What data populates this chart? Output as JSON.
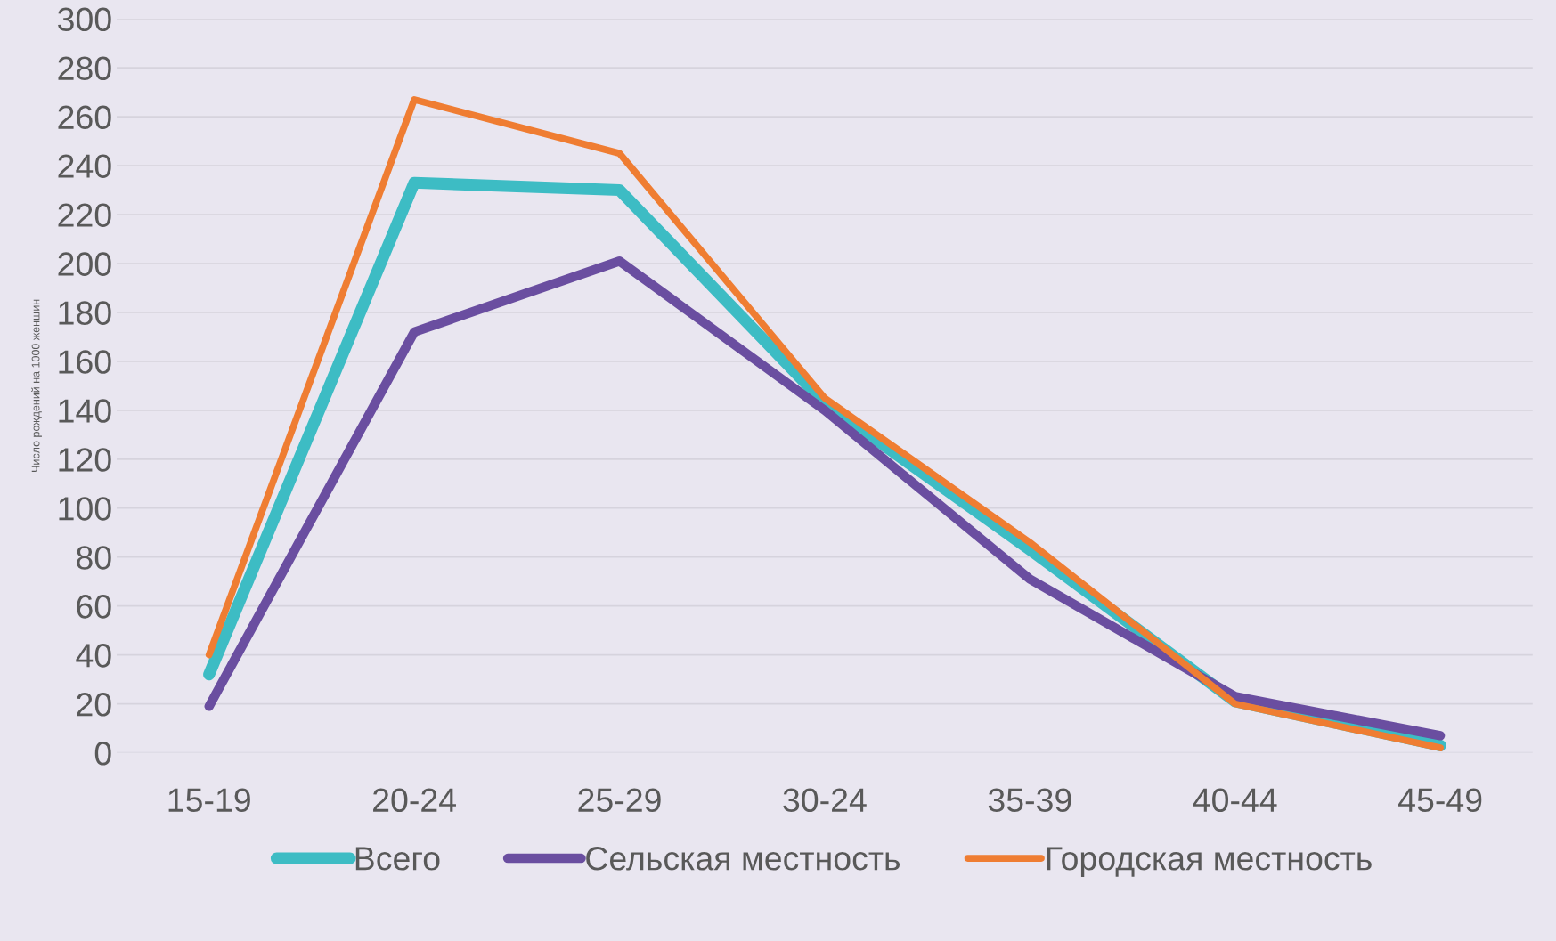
{
  "chart_data": {
    "type": "line",
    "ylabel": "Число рождений на 1000 женщин",
    "categories": [
      "15-19",
      "20-24",
      "25-29",
      "30-24",
      "35-39",
      "40-44",
      "45-49"
    ],
    "series": [
      {
        "name": "Всего",
        "color": "#3dbcc4",
        "values": [
          32,
          233,
          230,
          143,
          83,
          21,
          3
        ]
      },
      {
        "name": "Сельская местность",
        "color": "#6a4ea0",
        "values": [
          19,
          172,
          201,
          140,
          71,
          23,
          7
        ]
      },
      {
        "name": "Городская местность",
        "color": "#ef7d32",
        "values": [
          40,
          267,
          245,
          145,
          86,
          20,
          2
        ]
      }
    ],
    "ylim": [
      0,
      300
    ],
    "yticks": [
      0,
      20,
      40,
      60,
      80,
      100,
      120,
      140,
      160,
      180,
      200,
      220,
      240,
      260,
      280,
      300
    ],
    "grid": "y",
    "legend": "bottom",
    "marker": "none",
    "line_style": "solid"
  }
}
